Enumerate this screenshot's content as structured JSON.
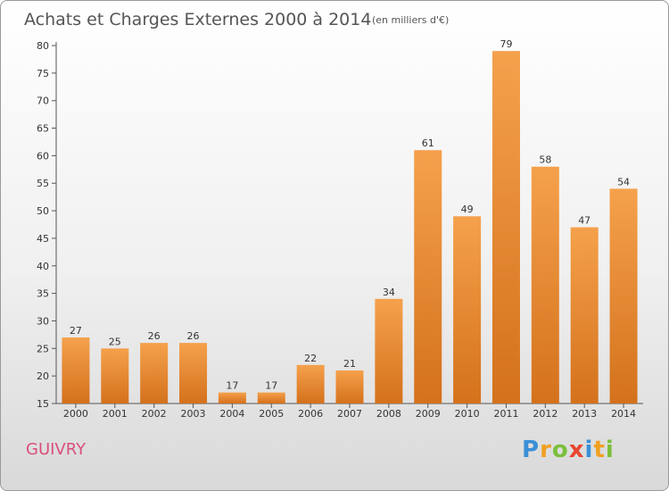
{
  "chart_data": {
    "type": "bar",
    "title": "Achats et Charges Externes 2000 à 2014",
    "subtitle": "(en milliers d'€)",
    "categories": [
      "2000",
      "2001",
      "2002",
      "2003",
      "2004",
      "2005",
      "2006",
      "2007",
      "2008",
      "2009",
      "2010",
      "2011",
      "2012",
      "2013",
      "2014"
    ],
    "values": [
      27,
      25,
      26,
      26,
      17,
      17,
      22,
      21,
      34,
      61,
      49,
      79,
      58,
      47,
      54
    ],
    "ylim": [
      15,
      80
    ],
    "yticks": [
      15,
      20,
      25,
      30,
      35,
      40,
      45,
      50,
      55,
      60,
      65,
      70,
      75,
      80
    ],
    "grid": false,
    "bar_color_top": "#f5a14c",
    "bar_color_bottom": "#d4711c"
  },
  "footer": {
    "commune": "GUIVRY",
    "commune_color": "#d94f7a",
    "brand_letters": [
      "P",
      "r",
      "o",
      "x",
      "i",
      "t",
      "i"
    ],
    "brand_colors": [
      "#3a8fd6",
      "#f0a020",
      "#7bbf3a",
      "#e8452e",
      "#3a8fd6",
      "#f0a020",
      "#7bbf3a"
    ]
  }
}
